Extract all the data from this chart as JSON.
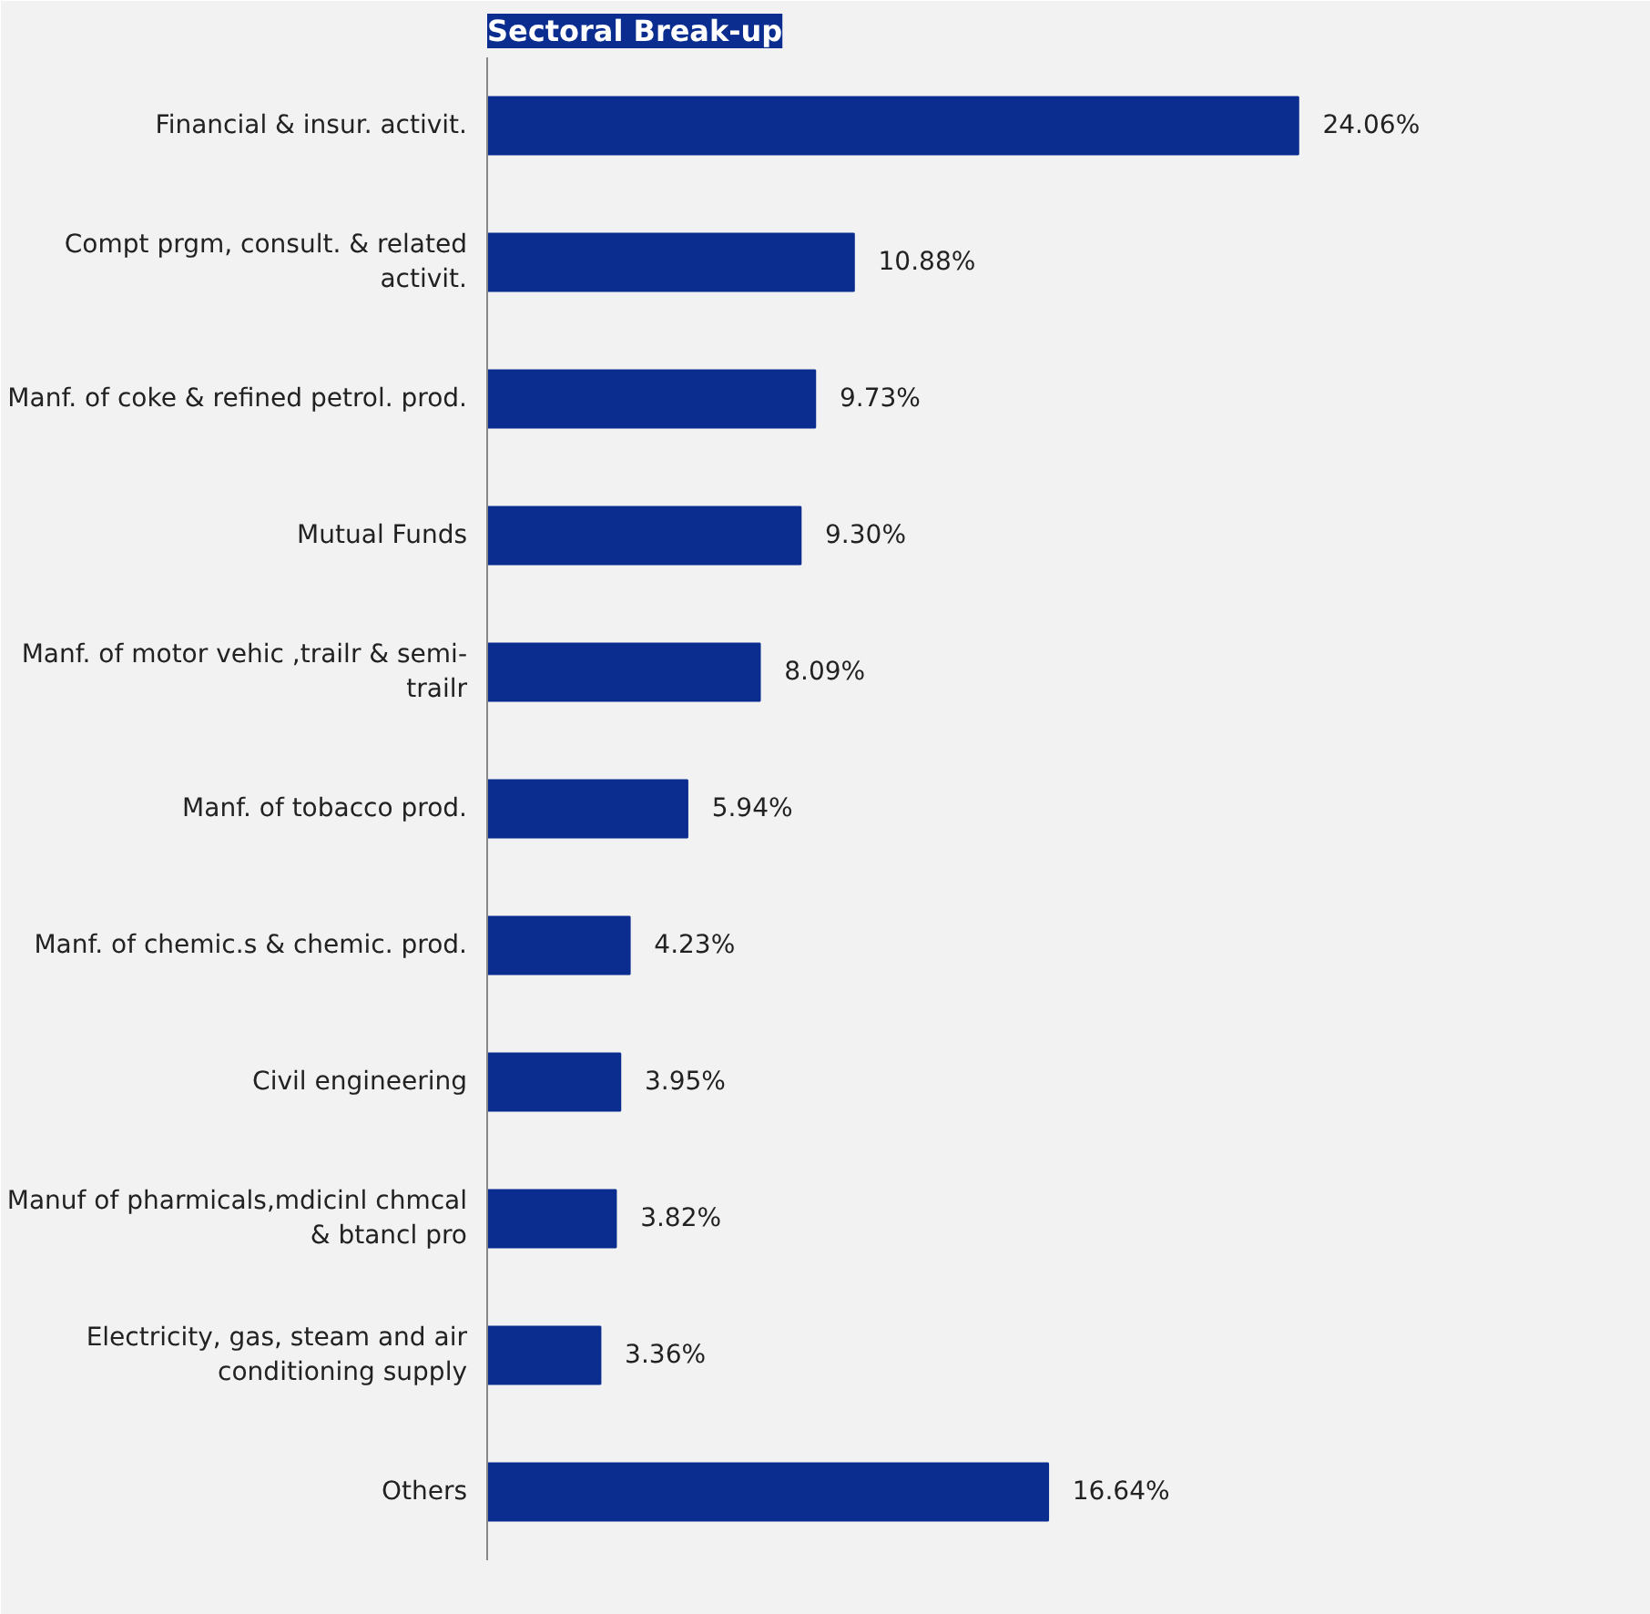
{
  "chart_data": {
    "type": "bar",
    "orientation": "horizontal",
    "title": "Sectoral Break-up",
    "categories": [
      "Financial & insur. activit.",
      "Compt prgm, consult. & related\nactivit.",
      "Manf. of coke & refined petrol. prod.",
      "Mutual Funds",
      "Manf. of motor vehic ,trailr & semi-\ntrailr",
      "Manf. of tobacco prod.",
      "Manf. of chemic.s & chemic. prod.",
      "Civil engineering",
      "Manuf of pharmicals,mdicinl chmcal\n& btancl pro",
      "Electricity, gas, steam and air\nconditioning supply",
      "Others"
    ],
    "values": [
      24.06,
      10.88,
      9.73,
      9.3,
      8.09,
      5.94,
      4.23,
      3.95,
      3.82,
      3.36,
      16.64
    ],
    "value_labels": [
      "24.06%",
      "10.88%",
      "9.73%",
      "9.30%",
      "8.09%",
      "5.94%",
      "4.23%",
      "3.95%",
      "3.82%",
      "3.36%",
      "16.64%"
    ],
    "color": "#0a2d8f"
  }
}
